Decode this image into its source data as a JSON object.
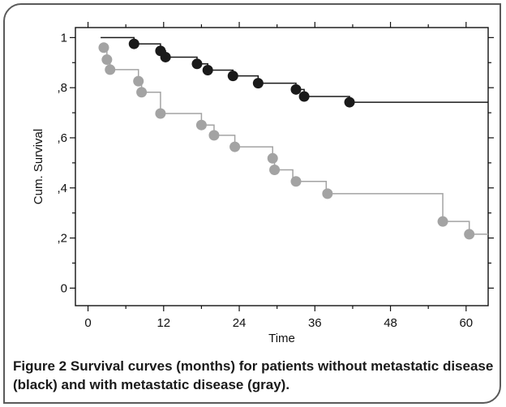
{
  "figure": {
    "caption_label": "Figure 2",
    "caption_text": "Survival curves (months) for patients without metastatic disease (black) and with metastatic disease (gray)."
  },
  "chart_data": {
    "type": "line",
    "xlabel": "Time",
    "ylabel": "Cum. Survival",
    "xlim": [
      -2,
      63.5
    ],
    "ylim": [
      -0.07,
      1.04
    ],
    "xticks": [
      0,
      12,
      24,
      36,
      48,
      60
    ],
    "xtick_labels": [
      "0",
      "12",
      "24",
      "36",
      "48",
      "60"
    ],
    "yticks": [
      0,
      0.2,
      0.4,
      0.6,
      0.8,
      1
    ],
    "ytick_labels": [
      "0",
      ",2",
      ",4",
      ",6",
      ",8",
      "1"
    ],
    "grid": false,
    "series": [
      {
        "color": "#1a1a1a",
        "step_x": [
          2.0,
          7.3,
          11.5,
          12.3,
          17.3,
          19.0,
          23.0,
          27.0,
          33.0,
          34.3,
          41.5,
          63.5
        ],
        "step_y": [
          1.0,
          0.975,
          0.947,
          0.922,
          0.895,
          0.87,
          0.847,
          0.818,
          0.793,
          0.765,
          0.742,
          0.742
        ],
        "censor_x": [
          7.3,
          11.5,
          12.3,
          17.3,
          19.0,
          23.0,
          27.0,
          33.0,
          34.3,
          41.5
        ],
        "censor_y": [
          0.975,
          0.947,
          0.922,
          0.895,
          0.87,
          0.847,
          0.818,
          0.793,
          0.765,
          0.742
        ]
      },
      {
        "color": "#a3a3a3",
        "step_x": [
          2.5,
          3.0,
          3.5,
          8.0,
          8.5,
          11.5,
          18.0,
          20.0,
          23.3,
          29.3,
          29.6,
          32.5,
          37.8,
          56.3,
          60.5,
          63.5
        ],
        "step_y": [
          0.96,
          0.912,
          0.872,
          0.826,
          0.782,
          0.697,
          0.651,
          0.61,
          0.564,
          0.518,
          0.472,
          0.426,
          0.377,
          0.266,
          0.215,
          0.215
        ],
        "censor_x": [
          2.5,
          3.0,
          3.5,
          8.0,
          8.5,
          11.5,
          18.0,
          20.0,
          23.3,
          29.3,
          29.6,
          33.0,
          38.0,
          56.3,
          60.5
        ],
        "censor_y": [
          0.96,
          0.912,
          0.872,
          0.826,
          0.782,
          0.697,
          0.651,
          0.61,
          0.564,
          0.518,
          0.472,
          0.426,
          0.377,
          0.266,
          0.215
        ]
      }
    ]
  }
}
